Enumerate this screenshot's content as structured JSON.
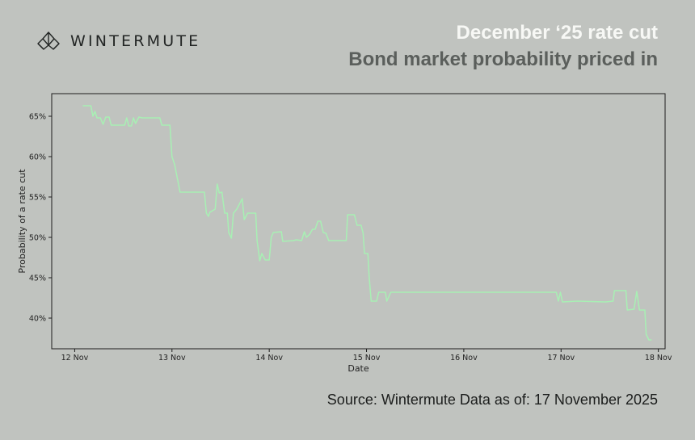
{
  "brand": {
    "name": "WINTERMUTE",
    "logo_icon": "wintermute-logo-icon"
  },
  "header": {
    "title": "December ‘25 rate cut",
    "subtitle": "Bond market probability priced in"
  },
  "footer": {
    "source": "Source: Wintermute  Data as of: 17 November 2025"
  },
  "colors": {
    "background": "#c0c3bf",
    "line": "#a8f0b4",
    "title": "#f7f8f5",
    "subtitle": "#5b5f5c"
  },
  "chart_data": {
    "type": "line",
    "xlabel": "Date",
    "ylabel": "Probability of a rate cut",
    "x_ticks": [
      "12 Nov",
      "13 Nov",
      "14 Nov",
      "15 Nov",
      "16 Nov",
      "17 Nov",
      "18 Nov"
    ],
    "y_ticks": [
      "40%",
      "45%",
      "50%",
      "55%",
      "60%",
      "65%"
    ],
    "xlim": [
      "2025-11-11 18:20",
      "2025-11-18 01:40"
    ],
    "ylim": [
      36.2,
      67.8
    ],
    "grid": false,
    "series": [
      {
        "color": "#a8f0b4",
        "points": [
          [
            "2025-11-12 02:00",
            66.3
          ],
          [
            "2025-11-12 04:00",
            66.3
          ],
          [
            "2025-11-12 04:30",
            65.0
          ],
          [
            "2025-11-12 05:00",
            65.6
          ],
          [
            "2025-11-12 05:30",
            64.8
          ],
          [
            "2025-11-12 06:20",
            64.8
          ],
          [
            "2025-11-12 07:00",
            64.0
          ],
          [
            "2025-11-12 07:40",
            64.9
          ],
          [
            "2025-11-12 08:30",
            64.9
          ],
          [
            "2025-11-12 09:00",
            63.9
          ],
          [
            "2025-11-12 11:30",
            63.9
          ],
          [
            "2025-11-12 12:20",
            63.9
          ],
          [
            "2025-11-12 12:50",
            64.8
          ],
          [
            "2025-11-12 13:20",
            63.8
          ],
          [
            "2025-11-12 14:00",
            63.8
          ],
          [
            "2025-11-12 14:30",
            64.8
          ],
          [
            "2025-11-12 15:00",
            64.1
          ],
          [
            "2025-11-12 15:50",
            64.9
          ],
          [
            "2025-11-12 16:40",
            64.8
          ],
          [
            "2025-11-12 21:00",
            64.8
          ],
          [
            "2025-11-12 21:30",
            63.9
          ],
          [
            "2025-11-12 23:30",
            63.9
          ],
          [
            "2025-11-13 00:00",
            60.0
          ],
          [
            "2025-11-13 00:40",
            59.0
          ],
          [
            "2025-11-13 01:20",
            57.3
          ],
          [
            "2025-11-13 02:00",
            55.6
          ],
          [
            "2025-11-13 08:00",
            55.6
          ],
          [
            "2025-11-13 08:30",
            53.0
          ],
          [
            "2025-11-13 09:00",
            52.6
          ],
          [
            "2025-11-13 09:20",
            53.1
          ],
          [
            "2025-11-13 10:40",
            53.5
          ],
          [
            "2025-11-13 11:10",
            56.6
          ],
          [
            "2025-11-13 11:40",
            55.5
          ],
          [
            "2025-11-13 12:20",
            55.6
          ],
          [
            "2025-11-13 13:00",
            53.0
          ],
          [
            "2025-11-13 13:40",
            53.0
          ],
          [
            "2025-11-13 14:00",
            50.6
          ],
          [
            "2025-11-13 14:40",
            49.9
          ],
          [
            "2025-11-13 15:10",
            53.0
          ],
          [
            "2025-11-13 16:00",
            53.5
          ],
          [
            "2025-11-13 17:20",
            54.8
          ],
          [
            "2025-11-13 17:50",
            52.2
          ],
          [
            "2025-11-13 18:40",
            53.0
          ],
          [
            "2025-11-13 20:40",
            53.0
          ],
          [
            "2025-11-13 21:00",
            49.6
          ],
          [
            "2025-11-13 21:40",
            47.1
          ],
          [
            "2025-11-13 22:10",
            48.0
          ],
          [
            "2025-11-13 23:00",
            47.2
          ],
          [
            "2025-11-14 00:00",
            47.2
          ],
          [
            "2025-11-14 00:30",
            50.0
          ],
          [
            "2025-11-14 01:00",
            50.6
          ],
          [
            "2025-11-14 03:00",
            50.7
          ],
          [
            "2025-11-14 03:20",
            49.5
          ],
          [
            "2025-11-14 06:00",
            49.6
          ],
          [
            "2025-11-14 06:40",
            49.7
          ],
          [
            "2025-11-14 08:00",
            49.6
          ],
          [
            "2025-11-14 08:40",
            50.7
          ],
          [
            "2025-11-14 09:10",
            50.0
          ],
          [
            "2025-11-14 10:00",
            50.4
          ],
          [
            "2025-11-14 10:40",
            51.0
          ],
          [
            "2025-11-14 11:20",
            51.0
          ],
          [
            "2025-11-14 12:00",
            52.0
          ],
          [
            "2025-11-14 12:40",
            52.0
          ],
          [
            "2025-11-14 13:20",
            50.6
          ],
          [
            "2025-11-14 14:00",
            50.5
          ],
          [
            "2025-11-14 14:40",
            49.6
          ],
          [
            "2025-11-14 19:00",
            49.6
          ],
          [
            "2025-11-14 19:20",
            52.8
          ],
          [
            "2025-11-14 21:00",
            52.8
          ],
          [
            "2025-11-14 21:40",
            51.5
          ],
          [
            "2025-11-14 22:40",
            51.5
          ],
          [
            "2025-11-14 23:10",
            50.5
          ],
          [
            "2025-11-14 23:30",
            48.0
          ],
          [
            "2025-11-15 00:20",
            48.0
          ],
          [
            "2025-11-15 00:40",
            45.0
          ],
          [
            "2025-11-15 01:10",
            42.1
          ],
          [
            "2025-11-15 02:30",
            42.1
          ],
          [
            "2025-11-15 03:00",
            43.2
          ],
          [
            "2025-11-15 04:40",
            43.2
          ],
          [
            "2025-11-15 05:00",
            42.1
          ],
          [
            "2025-11-15 06:00",
            43.2
          ],
          [
            "2025-11-16 22:50",
            43.2
          ],
          [
            "2025-11-16 23:20",
            42.1
          ],
          [
            "2025-11-16 23:50",
            43.2
          ],
          [
            "2025-11-17 00:20",
            42.0
          ],
          [
            "2025-11-17 04:00",
            42.1
          ],
          [
            "2025-11-17 11:00",
            42.0
          ],
          [
            "2025-11-17 12:50",
            42.1
          ],
          [
            "2025-11-17 13:10",
            43.4
          ],
          [
            "2025-11-17 16:00",
            43.4
          ],
          [
            "2025-11-17 16:20",
            41.0
          ],
          [
            "2025-11-17 18:00",
            41.1
          ],
          [
            "2025-11-17 18:40",
            43.3
          ],
          [
            "2025-11-17 19:20",
            41.0
          ],
          [
            "2025-11-17 20:40",
            41.0
          ],
          [
            "2025-11-17 21:00",
            38.0
          ],
          [
            "2025-11-17 21:40",
            37.3
          ],
          [
            "2025-11-17 22:20",
            37.3
          ]
        ]
      }
    ]
  }
}
